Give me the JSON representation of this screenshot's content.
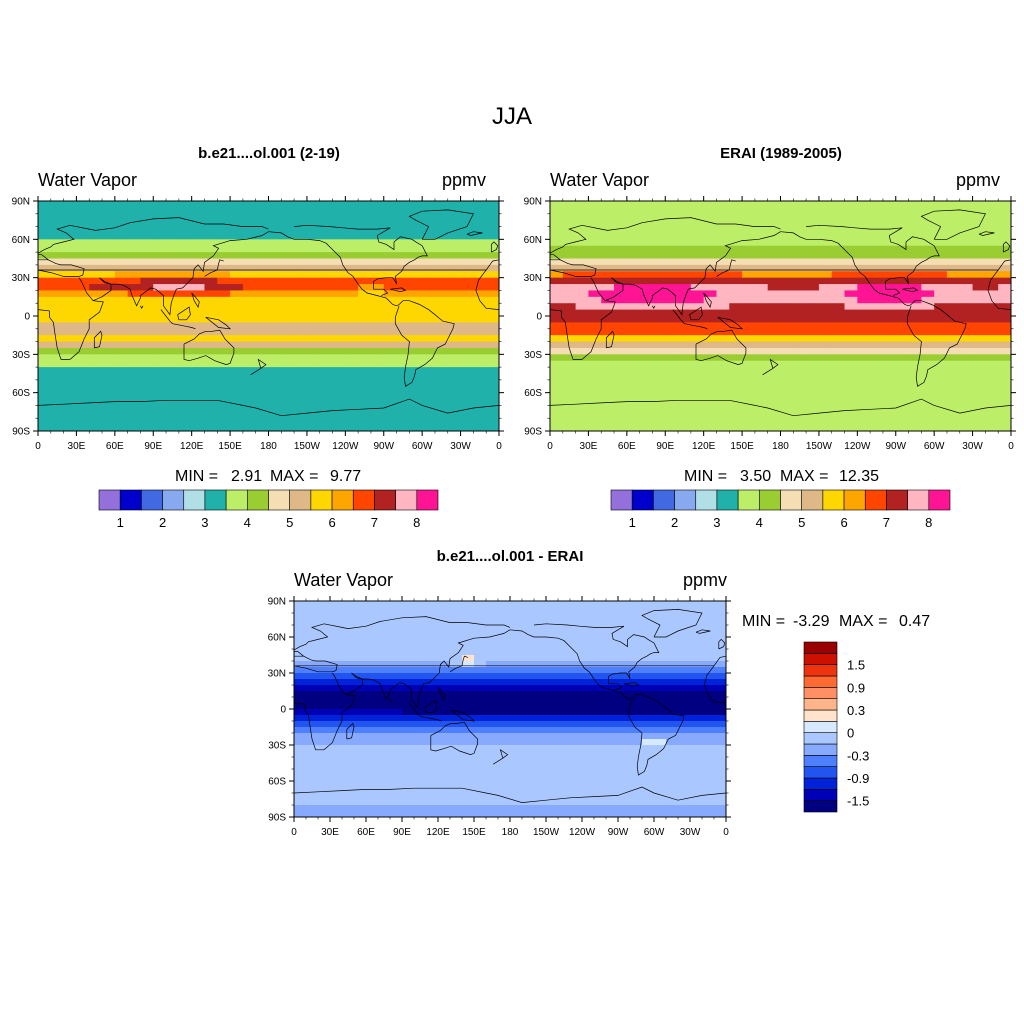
{
  "figure": {
    "title": "JJA",
    "panels": [
      {
        "id": "model",
        "title": "b.e21....ol.001 (2-19)",
        "left_label": "Water Vapor",
        "right_label": "ppmv",
        "stats": {
          "min_label": "MIN =",
          "min": "2.91",
          "max_label": "MAX =",
          "max": "9.77"
        }
      },
      {
        "id": "obs",
        "title": "ERAI (1989-2005)",
        "left_label": "Water Vapor",
        "right_label": "ppmv",
        "stats": {
          "min_label": "MIN =",
          "min": "3.50",
          "max_label": "MAX =",
          "max": "12.35"
        }
      },
      {
        "id": "diff",
        "title": "b.e21....ol.001 - ERAI",
        "left_label": "Water Vapor",
        "right_label": "ppmv",
        "stats": {
          "min_label": "MIN =",
          "min": "-3.29",
          "max_label": "MAX =",
          "max": "0.47"
        }
      }
    ],
    "lat_ticks": [
      "90N",
      "60N",
      "30N",
      "0",
      "30S",
      "60S",
      "90S"
    ],
    "lon_ticks": [
      "0",
      "30E",
      "60E",
      "90E",
      "120E",
      "150E",
      "180",
      "150W",
      "120W",
      "90W",
      "60W",
      "30W",
      "0"
    ]
  },
  "chart_data": [
    {
      "type": "heatmap",
      "title": "b.e21....ol.001 (2-19)",
      "variable": "Water Vapor",
      "units": "ppmv",
      "season": "JJA",
      "min": 2.91,
      "max": 9.77,
      "colorbar": {
        "labels": [
          "1",
          "2",
          "3",
          "4",
          "5",
          "6",
          "7",
          "8"
        ],
        "colors": [
          "#9370db",
          "#0000cd",
          "#4169e1",
          "#87a9f0",
          "#b0dfe6",
          "#20b2aa",
          "#bcee68",
          "#9acd32",
          "#f5deb3",
          "#deb887",
          "#ffd700",
          "#ffa500",
          "#ff4500",
          "#b22222",
          "#ffb6c1",
          "#ff1493"
        ]
      },
      "bands": [
        {
          "lat": 90,
          "value": 3.1
        },
        {
          "lat": 75,
          "value": 3.2
        },
        {
          "lat": 60,
          "value": 3.4
        },
        {
          "lat": 50,
          "value": 4.1
        },
        {
          "lat": 40,
          "value": 4.8
        },
        {
          "lat": 32,
          "value": 6.0
        },
        {
          "lat": 25,
          "value": 7.0
        },
        {
          "lat": 18,
          "value": 6.2
        },
        {
          "lat": 10,
          "value": 5.5
        },
        {
          "lat": 0,
          "value": 5.8
        },
        {
          "lat": -10,
          "value": 5.3
        },
        {
          "lat": -18,
          "value": 5.6
        },
        {
          "lat": -24,
          "value": 4.9
        },
        {
          "lat": -30,
          "value": 4.1
        },
        {
          "lat": -40,
          "value": 3.4
        },
        {
          "lat": -60,
          "value": 3.2
        },
        {
          "lat": -80,
          "value": 3.1
        },
        {
          "lat": -90,
          "value": 3.0
        }
      ],
      "features": [
        {
          "lon": 110,
          "lat": 22,
          "dlon": 48,
          "dlat": 8,
          "value": 7.6
        },
        {
          "lon": 260,
          "lat": 22,
          "dlon": 20,
          "dlat": 7,
          "value": 6.4
        },
        {
          "lon": 45,
          "lat": 22,
          "dlon": 18,
          "dlat": 8,
          "value": 6.8
        }
      ]
    },
    {
      "type": "heatmap",
      "title": "ERAI (1989-2005)",
      "variable": "Water Vapor",
      "units": "ppmv",
      "season": "JJA",
      "min": 3.5,
      "max": 12.35,
      "colorbar": {
        "labels": [
          "1",
          "2",
          "3",
          "4",
          "5",
          "6",
          "7",
          "8"
        ],
        "colors": [
          "#9370db",
          "#0000cd",
          "#4169e1",
          "#87a9f0",
          "#b0dfe6",
          "#20b2aa",
          "#bcee68",
          "#9acd32",
          "#f5deb3",
          "#deb887",
          "#ffd700",
          "#ffa500",
          "#ff4500",
          "#b22222",
          "#ffb6c1",
          "#ff1493"
        ]
      },
      "bands": [
        {
          "lat": 90,
          "value": 3.8
        },
        {
          "lat": 70,
          "value": 3.8
        },
        {
          "lat": 55,
          "value": 3.9
        },
        {
          "lat": 45,
          "value": 4.4
        },
        {
          "lat": 38,
          "value": 5.1
        },
        {
          "lat": 32,
          "value": 6.6
        },
        {
          "lat": 24,
          "value": 7.4
        },
        {
          "lat": 15,
          "value": 7.7
        },
        {
          "lat": 5,
          "value": 7.3
        },
        {
          "lat": -5,
          "value": 7.2
        },
        {
          "lat": -12,
          "value": 6.6
        },
        {
          "lat": -18,
          "value": 5.8
        },
        {
          "lat": -24,
          "value": 5.0
        },
        {
          "lat": -30,
          "value": 4.4
        },
        {
          "lat": -40,
          "value": 3.8
        },
        {
          "lat": -90,
          "value": 3.8
        }
      ],
      "features": [
        {
          "lon": 80,
          "lat": 18,
          "dlon": 55,
          "dlat": 10,
          "value": 8.6
        },
        {
          "lon": 265,
          "lat": 18,
          "dlon": 35,
          "dlat": 10,
          "value": 8.6
        }
      ]
    },
    {
      "type": "heatmap",
      "title": "b.e21....ol.001 - ERAI",
      "variable": "Water Vapor",
      "units": "ppmv",
      "season": "JJA",
      "min": -3.29,
      "max": 0.47,
      "colorbar": {
        "labels": [
          "1.5",
          "0.9",
          "0.3",
          "0",
          "-0.3",
          "-0.9",
          "-1.5"
        ],
        "colors": [
          "#000080",
          "#0000b4",
          "#0022d8",
          "#2255f0",
          "#4d7fff",
          "#87aaff",
          "#aac8ff",
          "#d7e9ff",
          "#ffe3cc",
          "#ffb48c",
          "#ff9066",
          "#ff6a33",
          "#ee3311",
          "#cc1100",
          "#990000"
        ]
      },
      "bands": [
        {
          "lat": 90,
          "value": -0.5
        },
        {
          "lat": 75,
          "value": -0.5
        },
        {
          "lat": 60,
          "value": -0.4
        },
        {
          "lat": 45,
          "value": -0.5
        },
        {
          "lat": 36,
          "value": -0.8
        },
        {
          "lat": 28,
          "value": -1.3
        },
        {
          "lat": 18,
          "value": -1.8
        },
        {
          "lat": 8,
          "value": -2.4
        },
        {
          "lat": 0,
          "value": -2.3
        },
        {
          "lat": -8,
          "value": -1.6
        },
        {
          "lat": -16,
          "value": -1.2
        },
        {
          "lat": -24,
          "value": -0.8
        },
        {
          "lat": -35,
          "value": -0.5
        },
        {
          "lat": -55,
          "value": -0.3
        },
        {
          "lat": -65,
          "value": -0.4
        },
        {
          "lat": -78,
          "value": -0.6
        },
        {
          "lat": -90,
          "value": -0.9
        }
      ],
      "features": [
        {
          "lon": 145,
          "lat": 40,
          "dlon": 10,
          "dlat": 4,
          "value": 0.35
        },
        {
          "lon": 300,
          "lat": -28,
          "dlon": 6,
          "dlat": 3,
          "value": 0.15
        },
        {
          "lon": 225,
          "lat": 5,
          "dlon": 90,
          "dlat": 8,
          "value": -2.8
        }
      ]
    }
  ]
}
